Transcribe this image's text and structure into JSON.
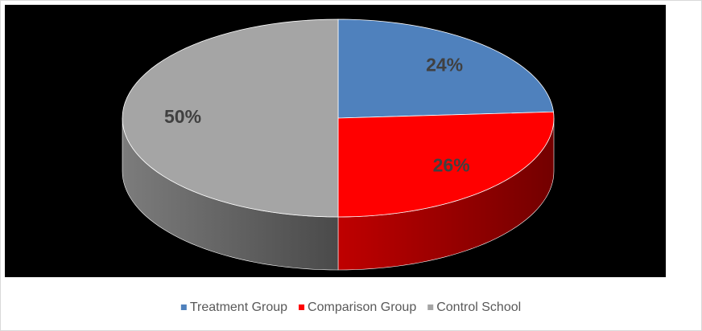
{
  "chart_data": {
    "type": "pie3d",
    "categories": [
      "Treatment Group",
      "Comparison Group",
      "Control School"
    ],
    "values": [
      24,
      26,
      50
    ],
    "value_labels": [
      "24%",
      "26%",
      "50%"
    ],
    "colors": [
      "#4f81bd",
      "#ff0000",
      "#a5a5a5"
    ],
    "legend": "bottom"
  }
}
